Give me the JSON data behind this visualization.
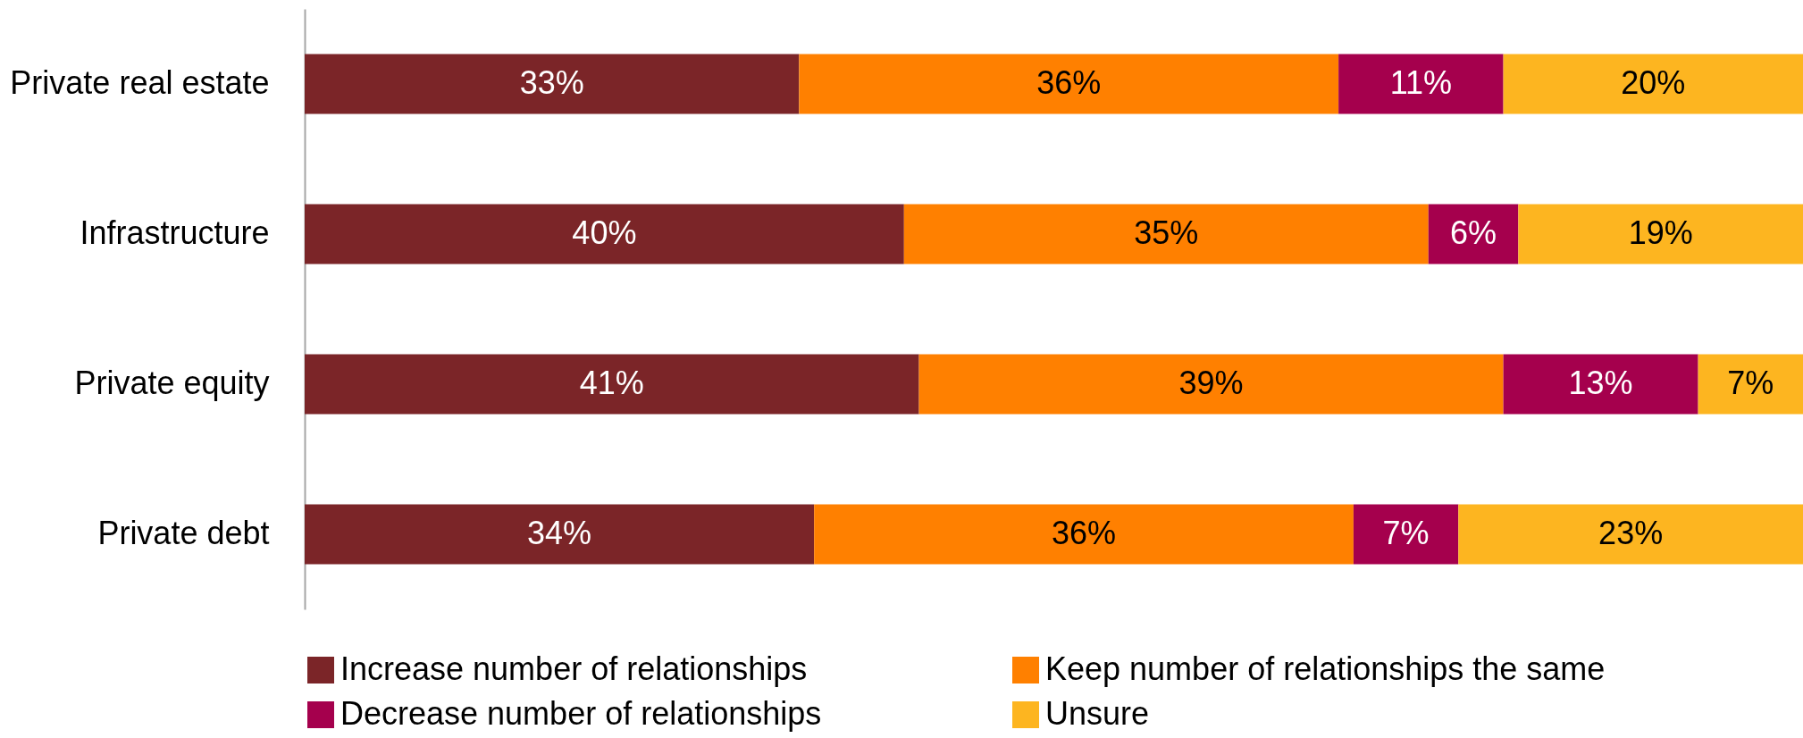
{
  "chart_data": {
    "type": "bar",
    "orientation": "horizontal",
    "stacked": true,
    "legend": "bottom",
    "categories": [
      "Private real estate",
      "Infrastructure",
      "Private equity",
      "Private debt"
    ],
    "series": [
      {
        "name": "Increase number of relationships",
        "color": "#7b2528",
        "values": [
          33,
          40,
          41,
          34
        ],
        "value_labels": [
          "33%",
          "40%",
          "41%",
          "34%"
        ]
      },
      {
        "name": "Keep number of relationships the same",
        "color": "#ff8000",
        "values": [
          36,
          35,
          39,
          36
        ],
        "value_labels": [
          "36%",
          "35%",
          "39%",
          "36%"
        ]
      },
      {
        "name": "Decrease number of relationships",
        "color": "#a5004d",
        "values": [
          11,
          6,
          13,
          7
        ],
        "value_labels": [
          "11%",
          "6%",
          "13%",
          "7%"
        ]
      },
      {
        "name": "Unsure",
        "color": "#fdb520",
        "values": [
          20,
          19,
          7,
          23
        ],
        "value_labels": [
          "20%",
          "19%",
          "7%",
          "23%"
        ]
      }
    ]
  }
}
